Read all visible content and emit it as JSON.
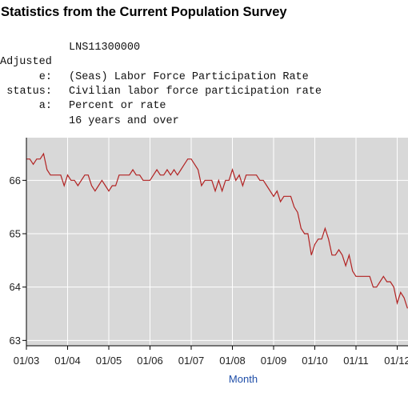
{
  "page": {
    "title": "Statistics from the Current Population Survey"
  },
  "series_info": [
    {
      "label": "",
      "value": "LNS11300000"
    },
    {
      "label": "Adjusted",
      "value": ""
    },
    {
      "label": "e:",
      "value": "(Seas) Labor Force Participation Rate"
    },
    {
      "label": "status:",
      "value": "Civilian labor force participation rate"
    },
    {
      "label": "a:",
      "value": "Percent or rate"
    },
    {
      "label": "",
      "value": "16 years and over"
    }
  ],
  "chart_data": {
    "type": "line",
    "title": "",
    "xlabel": "Month",
    "ylabel": "",
    "x_tick_labels": [
      "01/03",
      "01/04",
      "01/05",
      "01/06",
      "01/07",
      "01/08",
      "01/09",
      "01/10",
      "01/11",
      "01/12"
    ],
    "y_ticks": [
      63,
      64,
      65,
      66
    ],
    "ylim": [
      62.9,
      66.8
    ],
    "x_start": "2003-01",
    "grid": true,
    "colors": {
      "line": "#b22222",
      "plot_bg": "#d8d8d8",
      "grid": "#ffffff",
      "axis_title": "#1f4ea8"
    },
    "series": [
      {
        "values": [
          66.4,
          66.4,
          66.3,
          66.4,
          66.4,
          66.5,
          66.2,
          66.1,
          66.1,
          66.1,
          66.1,
          65.9,
          66.1,
          66.0,
          66.0,
          65.9,
          66.0,
          66.1,
          66.1,
          65.9,
          65.8,
          65.9,
          66.0,
          65.9,
          65.8,
          65.9,
          65.9,
          66.1,
          66.1,
          66.1,
          66.1,
          66.2,
          66.1,
          66.1,
          66.0,
          66.0,
          66.0,
          66.1,
          66.2,
          66.1,
          66.1,
          66.2,
          66.1,
          66.2,
          66.1,
          66.2,
          66.3,
          66.4,
          66.4,
          66.3,
          66.2,
          65.9,
          66.0,
          66.0,
          66.0,
          65.8,
          66.0,
          65.8,
          66.0,
          66.0,
          66.2,
          66.0,
          66.1,
          65.9,
          66.1,
          66.1,
          66.1,
          66.1,
          66.0,
          66.0,
          65.9,
          65.8,
          65.7,
          65.8,
          65.6,
          65.7,
          65.7,
          65.7,
          65.5,
          65.4,
          65.1,
          65.0,
          65.0,
          64.6,
          64.8,
          64.9,
          64.9,
          65.1,
          64.9,
          64.6,
          64.6,
          64.7,
          64.6,
          64.4,
          64.6,
          64.3,
          64.2,
          64.2,
          64.2,
          64.2,
          64.2,
          64.0,
          64.0,
          64.1,
          64.2,
          64.1,
          64.1,
          64.0,
          63.7,
          63.9,
          63.8,
          63.6
        ]
      }
    ]
  }
}
